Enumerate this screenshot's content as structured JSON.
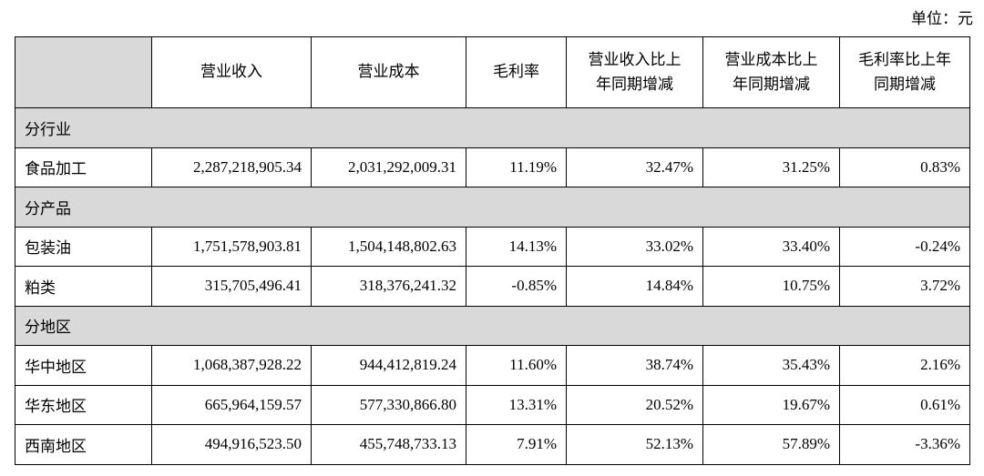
{
  "unit_label": "单位：元",
  "header": {
    "col0": "",
    "col1": "营业收入",
    "col2": "营业成本",
    "col3": "毛利率",
    "col4": [
      "营业收入比上",
      "年同期增减"
    ],
    "col5": [
      "营业成本比上",
      "年同期增减"
    ],
    "col6": [
      "毛利率比上年",
      "同期增减"
    ]
  },
  "sections": [
    {
      "title": "分行业",
      "rows": [
        {
          "name": "食品加工",
          "revenue": "2,287,218,905.34",
          "cost": "2,031,292,009.31",
          "margin": "11.19%",
          "rev_change": "32.47%",
          "cost_change": "31.25%",
          "margin_change": "0.83%"
        }
      ]
    },
    {
      "title": "分产品",
      "rows": [
        {
          "name": "包装油",
          "revenue": "1,751,578,903.81",
          "cost": "1,504,148,802.63",
          "margin": "14.13%",
          "rev_change": "33.02%",
          "cost_change": "33.40%",
          "margin_change": "-0.24%"
        },
        {
          "name": "粕类",
          "revenue": "315,705,496.41",
          "cost": "318,376,241.32",
          "margin": "-0.85%",
          "rev_change": "14.84%",
          "cost_change": "10.75%",
          "margin_change": "3.72%"
        }
      ]
    },
    {
      "title": "分地区",
      "rows": [
        {
          "name": "华中地区",
          "revenue": "1,068,387,928.22",
          "cost": "944,412,819.24",
          "margin": "11.60%",
          "rev_change": "38.74%",
          "cost_change": "35.43%",
          "margin_change": "2.16%"
        },
        {
          "name": "华东地区",
          "revenue": "665,964,159.57",
          "cost": "577,330,866.80",
          "margin": "13.31%",
          "rev_change": "20.52%",
          "cost_change": "19.67%",
          "margin_change": "0.61%"
        },
        {
          "name": "西南地区",
          "revenue": "494,916,523.50",
          "cost": "455,748,733.13",
          "margin": "7.91%",
          "rev_change": "52.13%",
          "cost_change": "57.89%",
          "margin_change": "-3.36%"
        }
      ]
    }
  ]
}
